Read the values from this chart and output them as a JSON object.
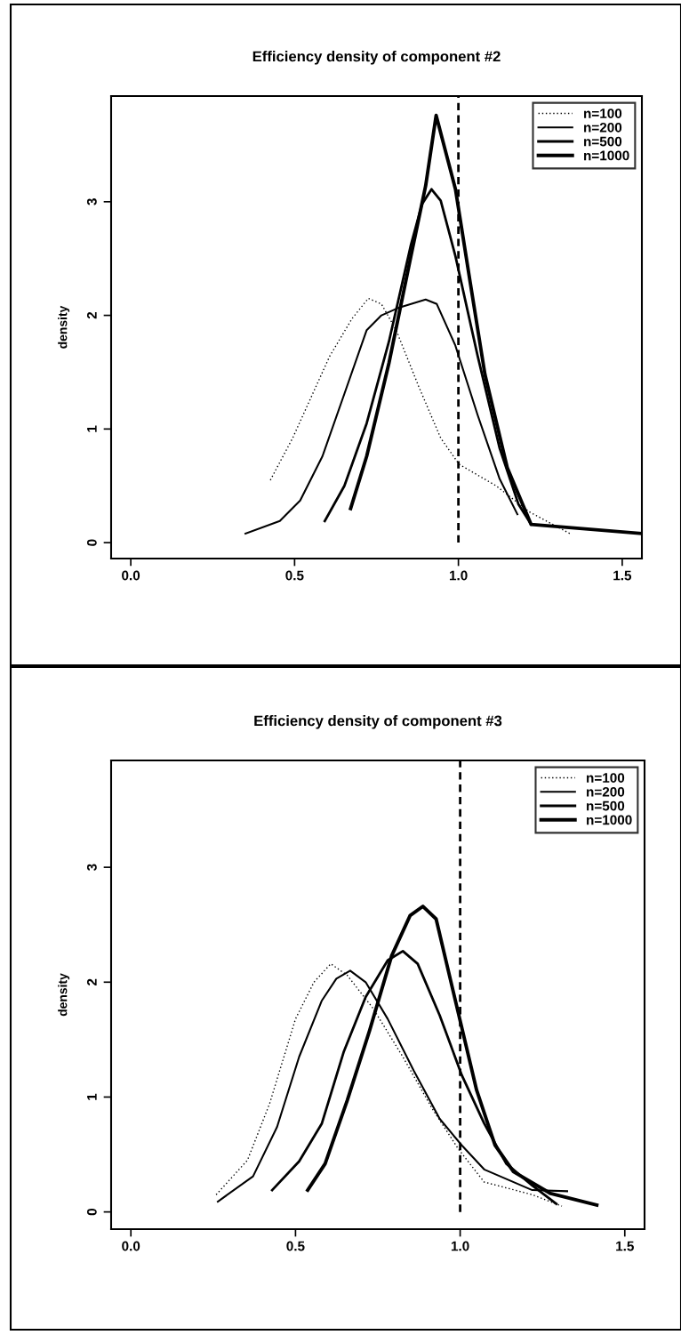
{
  "chart_data": [
    {
      "type": "line",
      "title": "Efficiency density of component #2",
      "ylabel": "density",
      "xlim": [
        -0.06,
        1.56
      ],
      "ylim": [
        -0.14,
        3.93
      ],
      "xticks": [
        {
          "value": 0,
          "label": "0.0"
        },
        {
          "value": 0.5,
          "label": "0.5"
        },
        {
          "value": 1,
          "label": "1.0"
        },
        {
          "value": 1.5,
          "label": "1.5"
        }
      ],
      "yticks": [
        0,
        1,
        2,
        3
      ],
      "legend": "top right",
      "grid": false,
      "ref_lines": [
        {
          "axis": "x",
          "value": 1,
          "color": "#000000",
          "line_style": "dashed"
        }
      ],
      "series": [
        {
          "name": "n=100",
          "color": "#000000",
          "line_style": "dotted",
          "x": [
            0.426,
            0.494,
            0.607,
            0.675,
            0.725,
            0.765,
            0.81,
            0.878,
            0.946,
            1.002,
            1.115,
            1.217,
            1.34
          ],
          "values": [
            0.55,
            0.92,
            1.64,
            1.97,
            2.15,
            2.1,
            1.87,
            1.38,
            0.92,
            0.69,
            0.5,
            0.27,
            0.08
          ]
        },
        {
          "name": "n=200",
          "color": "#000000",
          "line_style": "solid",
          "x": [
            0.35,
            0.455,
            0.517,
            0.585,
            0.652,
            0.72,
            0.765,
            0.82,
            0.9,
            0.934,
            0.99,
            1.059,
            1.126,
            1.18
          ],
          "values": [
            0.08,
            0.19,
            0.37,
            0.76,
            1.31,
            1.87,
            2.0,
            2.07,
            2.14,
            2.1,
            1.74,
            1.12,
            0.56,
            0.25
          ]
        },
        {
          "name": "n=500",
          "color": "#000000",
          "line_style": "solid",
          "x": [
            0.592,
            0.652,
            0.72,
            0.788,
            0.855,
            0.889,
            0.918,
            0.946,
            0.991,
            1.059,
            1.126,
            1.183,
            1.222
          ],
          "values": [
            0.19,
            0.5,
            1.05,
            1.77,
            2.62,
            2.98,
            3.11,
            3.01,
            2.52,
            1.64,
            0.83,
            0.34,
            0.16
          ]
        },
        {
          "name": "n=1000",
          "color": "#000000",
          "line_style": "solid",
          "x": [
            0.671,
            0.72,
            0.788,
            0.855,
            0.9,
            0.932,
            0.991,
            1.036,
            1.081,
            1.149,
            1.222,
            1.56
          ],
          "values": [
            0.3,
            0.76,
            1.58,
            2.52,
            3.14,
            3.76,
            3.11,
            2.29,
            1.48,
            0.66,
            0.16,
            0.08
          ]
        }
      ]
    },
    {
      "type": "line",
      "title": "Efficiency density of component #3",
      "ylabel": "density",
      "xlim": [
        -0.06,
        1.56
      ],
      "ylim": [
        -0.15,
        3.93
      ],
      "xticks": [
        {
          "value": 0,
          "label": "0.0"
        },
        {
          "value": 0.5,
          "label": "0.5"
        },
        {
          "value": 1,
          "label": "1.0"
        },
        {
          "value": 1.5,
          "label": "1.5"
        }
      ],
      "yticks": [
        0,
        1,
        2,
        3
      ],
      "legend": "top right",
      "grid": false,
      "ref_lines": [
        {
          "axis": "x",
          "value": 1,
          "color": "#000000",
          "line_style": "dashed"
        }
      ],
      "series": [
        {
          "name": "n=100",
          "color": "#000000",
          "line_style": "dotted",
          "x": [
            0.259,
            0.354,
            0.421,
            0.5,
            0.556,
            0.607,
            0.657,
            0.736,
            0.826,
            0.915,
            0.994,
            1.073,
            1.219,
            1.309
          ],
          "values": [
            0.15,
            0.45,
            0.94,
            1.68,
            2.0,
            2.16,
            2.06,
            1.77,
            1.35,
            0.9,
            0.55,
            0.26,
            0.15,
            0.05
          ]
        },
        {
          "name": "n=200",
          "color": "#000000",
          "line_style": "solid",
          "x": [
            0.264,
            0.371,
            0.444,
            0.511,
            0.58,
            0.624,
            0.666,
            0.713,
            0.78,
            0.859,
            0.938,
            1.005,
            1.073,
            1.219,
            1.325
          ],
          "values": [
            0.09,
            0.31,
            0.74,
            1.35,
            1.84,
            2.03,
            2.1,
            2.0,
            1.68,
            1.23,
            0.81,
            0.58,
            0.37,
            0.19,
            0.18
          ]
        },
        {
          "name": "n=500",
          "color": "#000000",
          "line_style": "solid",
          "x": [
            0.429,
            0.511,
            0.58,
            0.646,
            0.713,
            0.78,
            0.826,
            0.871,
            0.938,
            1.005,
            1.073,
            1.14,
            1.219,
            1.292
          ],
          "values": [
            0.19,
            0.44,
            0.77,
            1.39,
            1.87,
            2.19,
            2.27,
            2.16,
            1.71,
            1.19,
            0.77,
            0.42,
            0.23,
            0.07
          ]
        },
        {
          "name": "n=1000",
          "color": "#000000",
          "line_style": "solid",
          "x": [
            0.537,
            0.59,
            0.657,
            0.725,
            0.792,
            0.848,
            0.887,
            0.927,
            0.983,
            1.05,
            1.106,
            1.162,
            1.275,
            1.415
          ],
          "values": [
            0.19,
            0.42,
            0.97,
            1.58,
            2.23,
            2.58,
            2.66,
            2.55,
            1.87,
            1.06,
            0.58,
            0.35,
            0.16,
            0.06
          ]
        }
      ]
    }
  ]
}
